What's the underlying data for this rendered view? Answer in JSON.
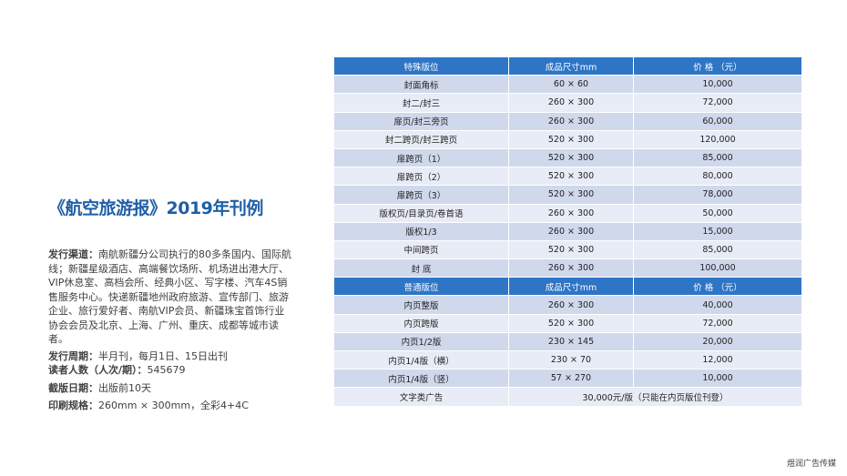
{
  "title": "《航空旅游报》2019年刊例",
  "info": {
    "channel_label": "发行渠道：",
    "channel_text": "南航新疆分公司执行的80多条国内、国际航线；新疆星级酒店、高端餐饮场所、机场进出港大厅、VIP休息室、高档会所、经典小区、写字楼、汽车4S销售服务中心。快递新疆地州政府旅游、宣传部门、旅游企业、旅行爱好者、南航VIP会员、新疆珠宝首饰行业协会会员及北京、上海、广州、重庆、成都等城市读者。",
    "period_label": "发行周期：",
    "period_text": "半月刊，每月1日、15日出刊",
    "readers_label": "读者人数（人次/期）：",
    "readers_text": "545679",
    "deadline_label": "截版日期：",
    "deadline_text": "出版前10天",
    "spec_label": "印刷规格：",
    "spec_text": "260mm × 300mm，全彩4+4C"
  },
  "special": {
    "headers": [
      "特殊版位",
      "成品尺寸mm",
      "价 格 （元）"
    ],
    "rows": [
      [
        "封面角标",
        "60 × 60",
        "10,000"
      ],
      [
        "封二/封三",
        "260 × 300",
        "72,000"
      ],
      [
        "扉页/封三旁页",
        "260 × 300",
        "60,000"
      ],
      [
        "封二跨页/封三跨页",
        "520 × 300",
        "120,000"
      ],
      [
        "扉跨页（1）",
        "520 × 300",
        "85,000"
      ],
      [
        "扉跨页（2）",
        "520 × 300",
        "80,000"
      ],
      [
        "扉跨页（3）",
        "520 × 300",
        "78,000"
      ],
      [
        "版权页/目录页/卷首语",
        "260 × 300",
        "50,000"
      ],
      [
        "版权1/3",
        "260 × 300",
        "15,000"
      ],
      [
        "中间跨页",
        "520 × 300",
        "85,000"
      ],
      [
        "封 底",
        "260 × 300",
        "100,000"
      ]
    ]
  },
  "regular": {
    "headers": [
      "普通版位",
      "成品尺寸mm",
      "价 格 （元）"
    ],
    "rows": [
      [
        "内页整版",
        "260 × 300",
        "40,000"
      ],
      [
        "内页跨版",
        "520 × 300",
        "72,000"
      ],
      [
        "内页1/2版",
        "230 × 145",
        "20,000"
      ],
      [
        "内页1/4版（横）",
        "230 × 70",
        "12,000"
      ],
      [
        "内页1/4版（竖）",
        "57 × 270",
        "10,000"
      ]
    ]
  },
  "text_ad": {
    "label": "文字类广告",
    "value": "30,000元/版（只能在内页版位刊登）"
  },
  "footer": "煜润广告传媒",
  "colors": {
    "title": "#1f5fa8",
    "header_bg": "#2e75c6",
    "row_dark": "#d0d8ec",
    "row_light": "#e8ecf6"
  }
}
